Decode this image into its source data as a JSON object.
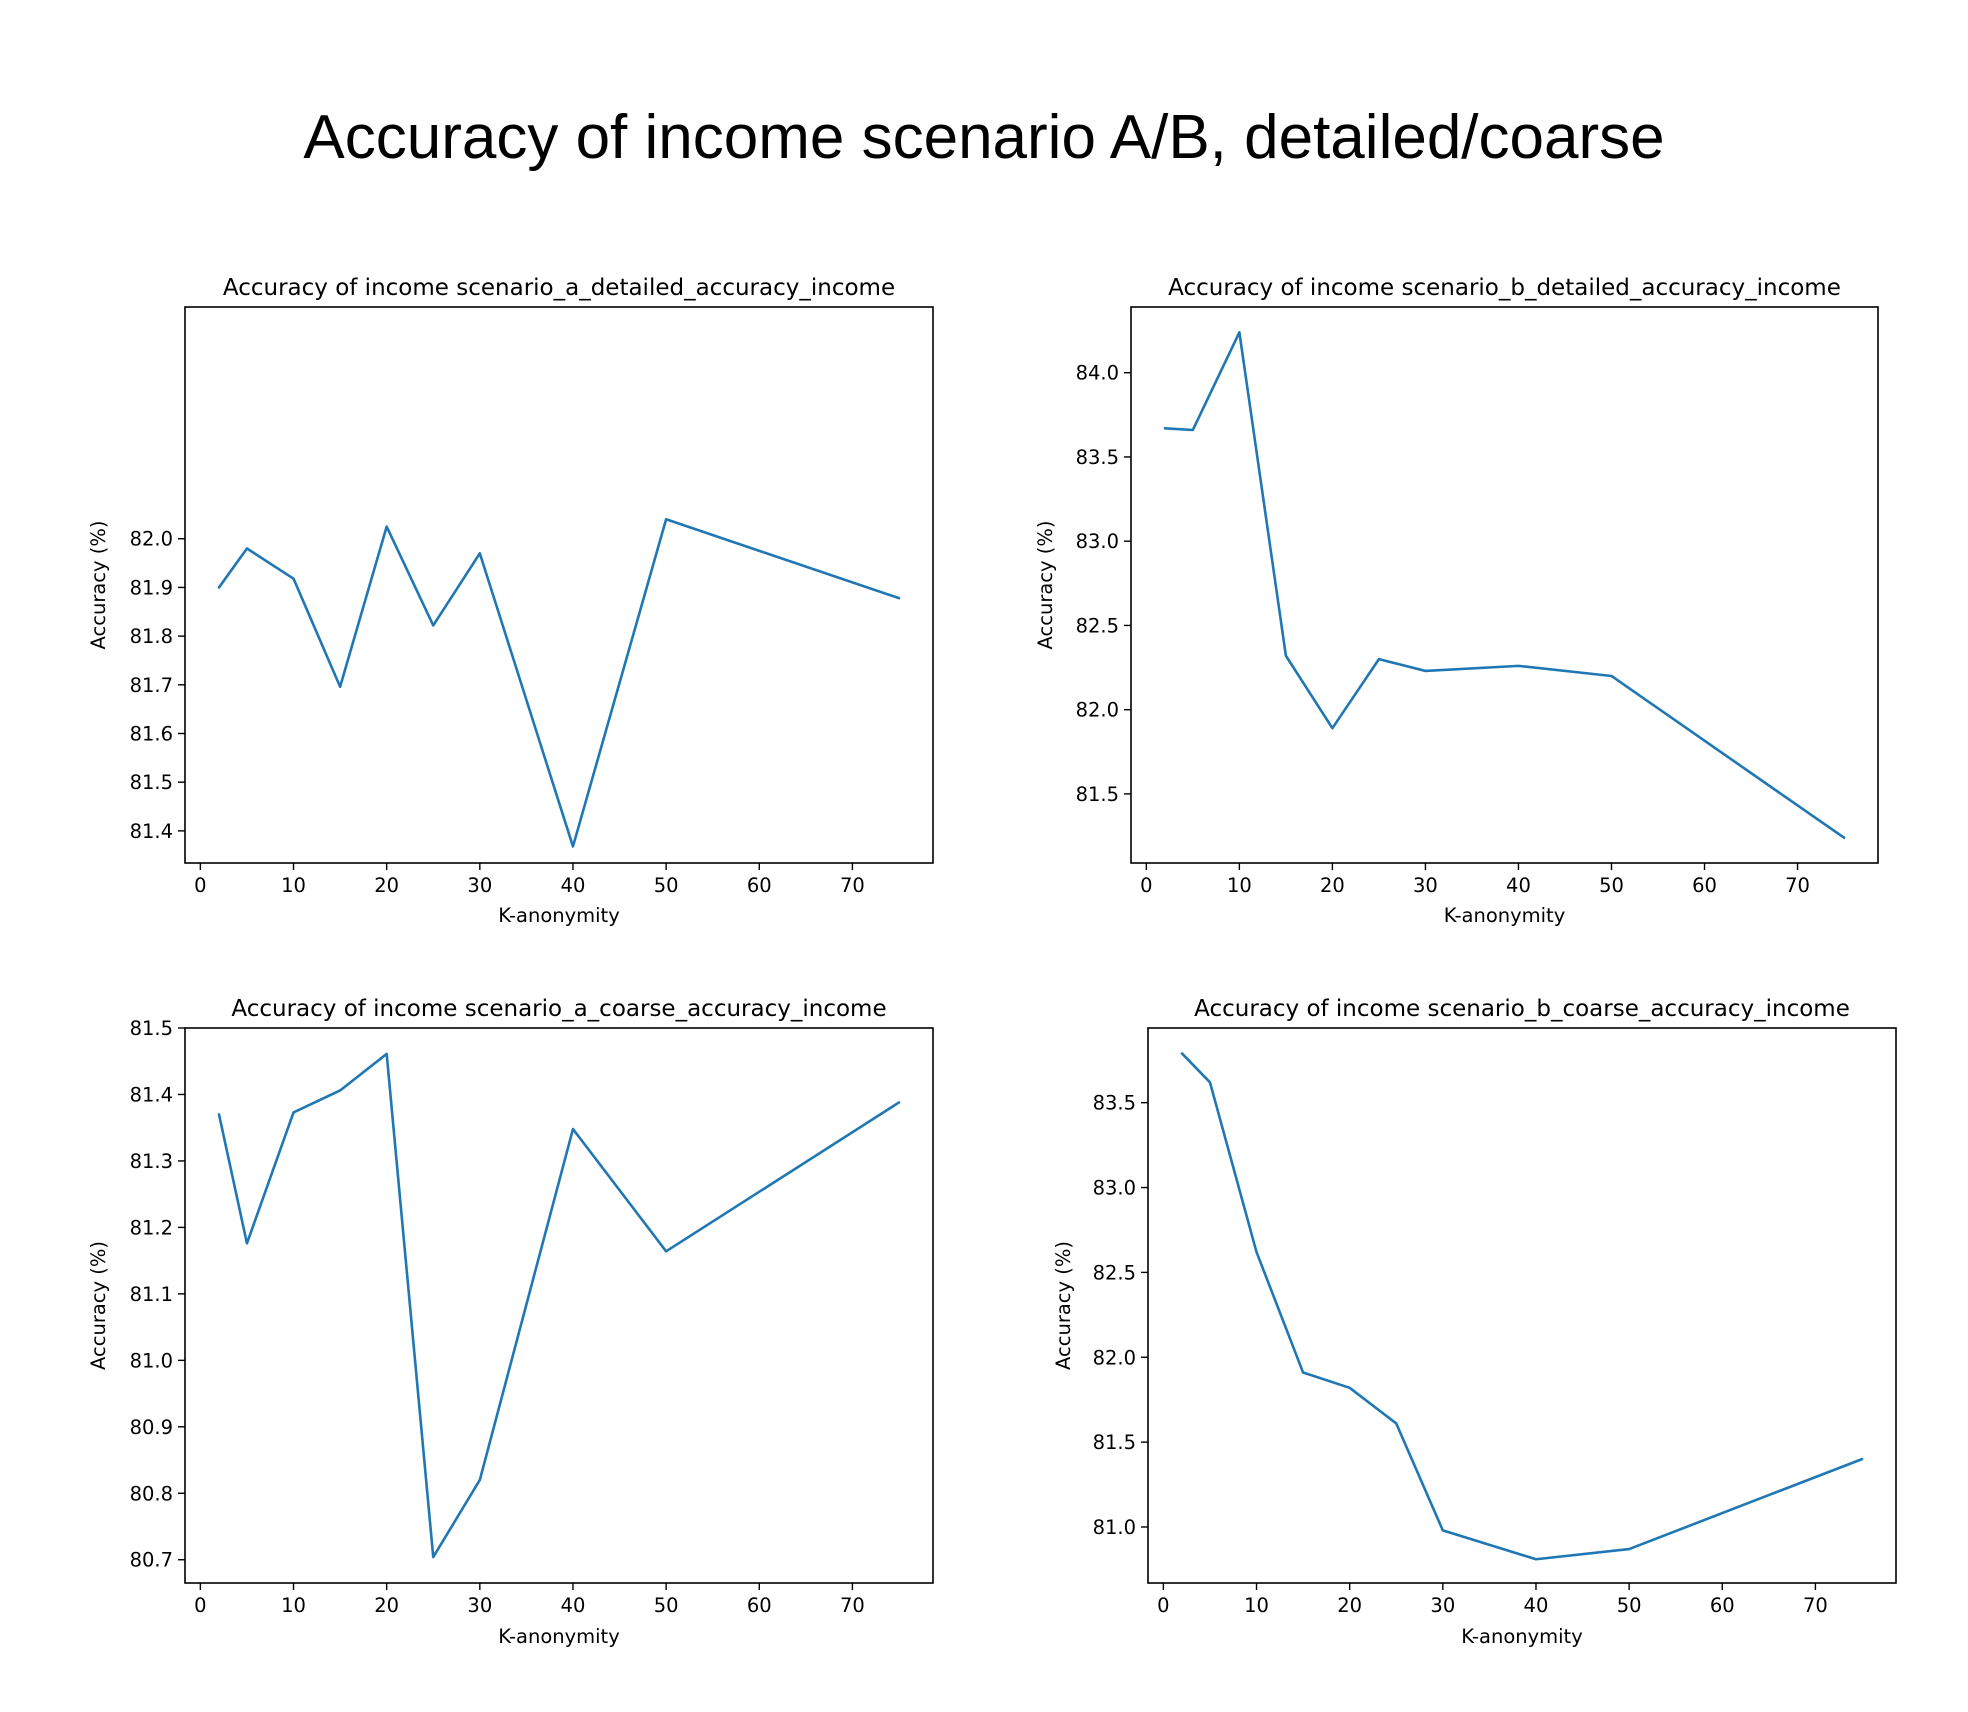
{
  "figure": {
    "title": "Accuracy of income scenario A/B, detailed/coarse",
    "line_color": "#1f77b4"
  },
  "chart_data": [
    {
      "type": "line",
      "title": "Accuracy of income scenario_a_detailed_accuracy_income",
      "xlabel": "K-anonymity",
      "ylabel": "Accuracy (%)",
      "grid": false,
      "xlim": [
        -1.65,
        78.65
      ],
      "ylim": [
        81.334,
        82.476
      ],
      "xticks": [
        0,
        10,
        20,
        30,
        40,
        50,
        60,
        70
      ],
      "yticks": [
        81.4,
        81.5,
        81.6,
        81.7,
        81.8,
        81.9,
        82.0
      ],
      "ytick_labels": [
        "81.4",
        "81.5",
        "81.6",
        "81.7",
        "81.8",
        "81.9",
        "82.0"
      ],
      "x": [
        2,
        5,
        10,
        15,
        20,
        25,
        30,
        40,
        50,
        75
      ],
      "series": [
        {
          "values": [
            81.9,
            81.98,
            81.918,
            81.696,
            82.025,
            81.822,
            81.97,
            81.368,
            82.04,
            81.878
          ]
        }
      ]
    },
    {
      "type": "line",
      "title": "Accuracy of income scenario_b_detailed_accuracy_income",
      "xlabel": "K-anonymity",
      "ylabel": "Accuracy (%)",
      "grid": false,
      "xlim": [
        -1.65,
        78.65
      ],
      "ylim": [
        81.09,
        84.39
      ],
      "xticks": [
        0,
        10,
        20,
        30,
        40,
        50,
        60,
        70
      ],
      "yticks": [
        81.5,
        82.0,
        82.5,
        83.0,
        83.5,
        84.0
      ],
      "ytick_labels": [
        "81.5",
        "82.0",
        "82.5",
        "83.0",
        "83.5",
        "84.0"
      ],
      "x": [
        2,
        5,
        10,
        15,
        20,
        25,
        30,
        40,
        50,
        75
      ],
      "series": [
        {
          "values": [
            83.67,
            83.66,
            84.24,
            82.32,
            81.89,
            82.3,
            82.23,
            82.26,
            82.2,
            81.24
          ]
        }
      ]
    },
    {
      "type": "line",
      "title": "Accuracy of income scenario_a_coarse_accuracy_income",
      "xlabel": "K-anonymity",
      "ylabel": "Accuracy (%)",
      "grid": false,
      "xlim": [
        -1.65,
        78.65
      ],
      "ylim": [
        80.665,
        81.5
      ],
      "xticks": [
        0,
        10,
        20,
        30,
        40,
        50,
        60,
        70
      ],
      "yticks": [
        80.7,
        80.8,
        80.9,
        81.0,
        81.1,
        81.2,
        81.3,
        81.4,
        81.5
      ],
      "ytick_labels": [
        "80.7",
        "80.8",
        "80.9",
        "81.0",
        "81.1",
        "81.2",
        "81.3",
        "81.4",
        "81.5"
      ],
      "x": [
        2,
        5,
        10,
        15,
        20,
        25,
        30,
        40,
        50,
        75
      ],
      "series": [
        {
          "values": [
            81.37,
            81.176,
            81.373,
            81.406,
            81.461,
            80.704,
            80.82,
            81.348,
            81.164,
            81.388
          ]
        }
      ]
    },
    {
      "type": "line",
      "title": "Accuracy of income scenario_b_coarse_accuracy_income",
      "xlabel": "K-anonymity",
      "ylabel": "Accuracy (%)",
      "grid": false,
      "xlim": [
        -1.65,
        78.65
      ],
      "ylim": [
        80.67,
        83.94
      ],
      "xticks": [
        0,
        10,
        20,
        30,
        40,
        50,
        60,
        70
      ],
      "yticks": [
        81.0,
        81.5,
        82.0,
        82.5,
        83.0,
        83.5
      ],
      "ytick_labels": [
        "81.0",
        "81.5",
        "82.0",
        "82.5",
        "83.0",
        "83.5"
      ],
      "x": [
        2,
        5,
        10,
        15,
        20,
        25,
        30,
        40,
        50,
        75
      ],
      "series": [
        {
          "values": [
            83.79,
            83.62,
            82.62,
            81.91,
            81.82,
            81.61,
            80.98,
            80.81,
            80.87,
            81.4
          ]
        }
      ]
    }
  ]
}
